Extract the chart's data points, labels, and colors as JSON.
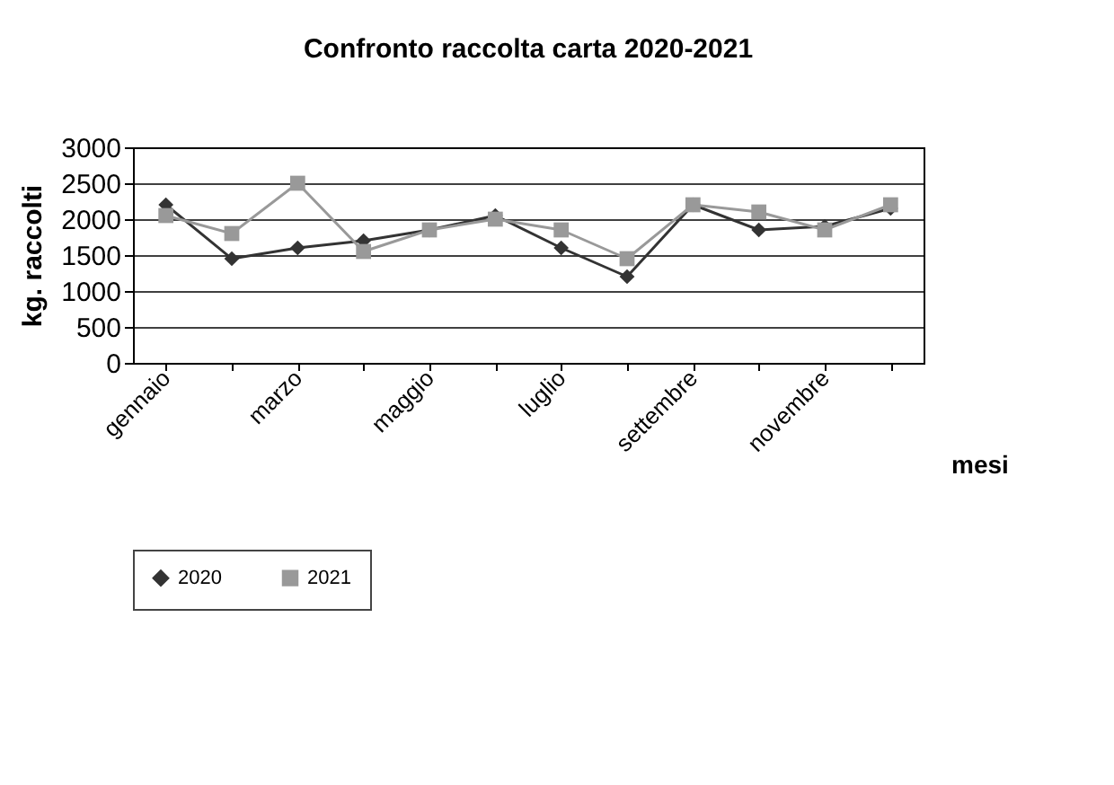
{
  "chart_data": {
    "type": "line",
    "title": "Confronto raccolta carta 2020-2021",
    "xlabel": "mesi",
    "ylabel": "kg. raccolti",
    "categories": [
      "gennaio",
      null,
      "marzo",
      null,
      "maggio",
      null,
      "luglio",
      null,
      "settembre",
      null,
      "novembre",
      null
    ],
    "series": [
      {
        "name": "2020",
        "color": "#333333",
        "marker": "diamond",
        "values": [
          2200,
          1450,
          1600,
          1700,
          1850,
          2050,
          1600,
          1200,
          2200,
          1850,
          1900,
          2150
        ]
      },
      {
        "name": "2021",
        "color": "#999999",
        "marker": "square",
        "values": [
          2050,
          1800,
          2500,
          1550,
          1850,
          2000,
          1850,
          1450,
          2200,
          2100,
          1850,
          2200
        ]
      }
    ],
    "ylim": [
      0,
      3000
    ],
    "yticks": [
      0,
      500,
      1000,
      1500,
      2000,
      2500,
      3000
    ],
    "grid": "y",
    "legend": "bottom"
  }
}
